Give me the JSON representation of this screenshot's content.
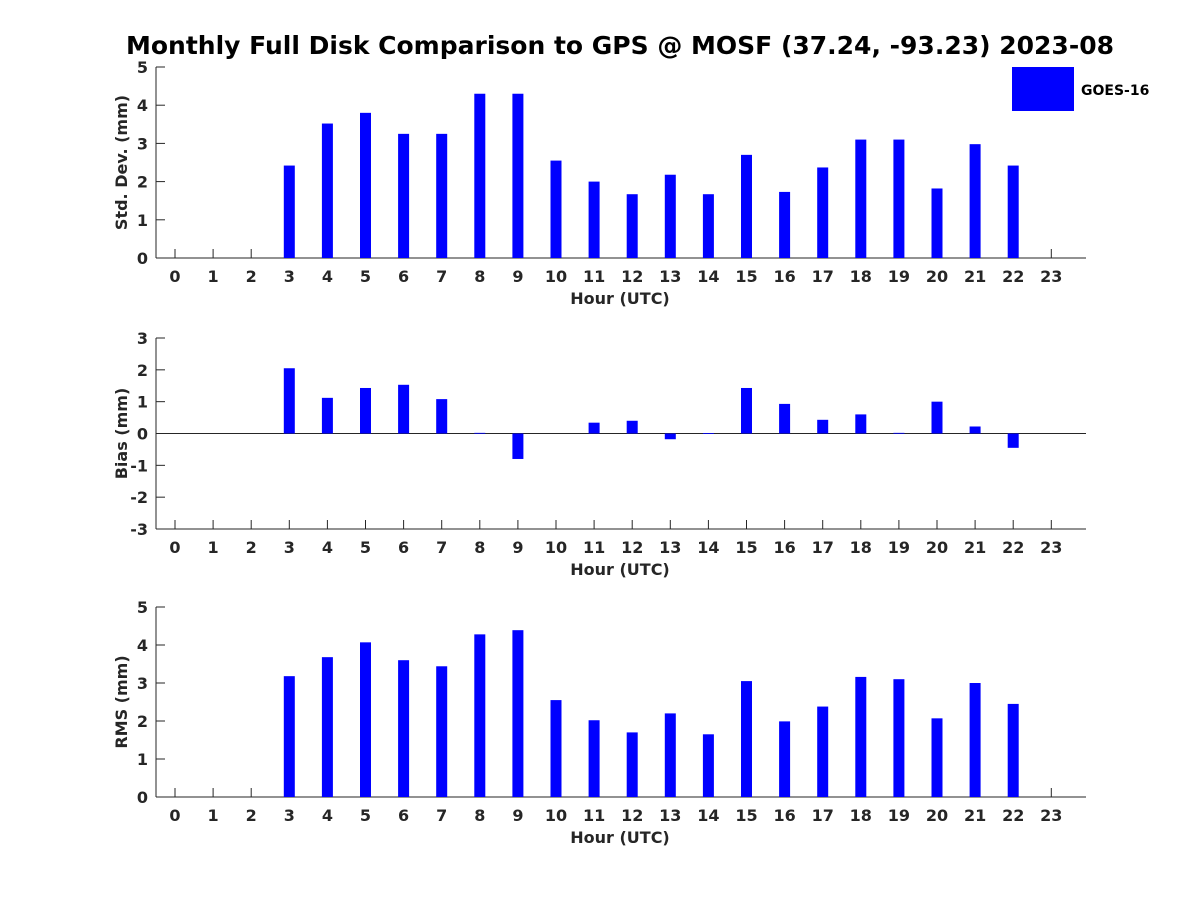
{
  "title": "Monthly Full Disk Comparison to GPS @ MOSF (37.24, -93.23) 2023-08",
  "legend": {
    "label": "GOES-16",
    "color": "#0000ff",
    "placement": "top-right"
  },
  "chart_data": [
    {
      "type": "bar",
      "xlabel": "Hour (UTC)",
      "ylabel": "Std. Dev. (mm)",
      "ylim": [
        0,
        5
      ],
      "yticks": [
        "0",
        "1",
        "2",
        "3",
        "4",
        "5"
      ],
      "categories": [
        "0",
        "1",
        "2",
        "3",
        "4",
        "5",
        "6",
        "7",
        "8",
        "9",
        "10",
        "11",
        "12",
        "13",
        "14",
        "15",
        "16",
        "17",
        "18",
        "19",
        "20",
        "21",
        "22",
        "23"
      ],
      "series": [
        {
          "name": "GOES-16",
          "color": "#0000ff",
          "values": [
            null,
            null,
            null,
            2.42,
            3.52,
            3.8,
            3.25,
            3.25,
            4.3,
            4.3,
            2.55,
            2.0,
            1.67,
            2.18,
            1.67,
            2.7,
            1.73,
            2.37,
            3.1,
            3.1,
            1.82,
            2.98,
            2.42,
            null
          ]
        }
      ]
    },
    {
      "type": "bar",
      "xlabel": "Hour (UTC)",
      "ylabel": "Bias (mm)",
      "ylim": [
        -3,
        3
      ],
      "yticks": [
        "-3",
        "-2",
        "-1",
        "0",
        "1",
        "2",
        "3"
      ],
      "categories": [
        "0",
        "1",
        "2",
        "3",
        "4",
        "5",
        "6",
        "7",
        "8",
        "9",
        "10",
        "11",
        "12",
        "13",
        "14",
        "15",
        "16",
        "17",
        "18",
        "19",
        "20",
        "21",
        "22",
        "23"
      ],
      "series": [
        {
          "name": "GOES-16",
          "color": "#0000ff",
          "values": [
            null,
            null,
            null,
            2.05,
            1.12,
            1.43,
            1.53,
            1.08,
            0.02,
            -0.8,
            null,
            0.34,
            0.4,
            -0.18,
            0.01,
            1.43,
            0.93,
            0.43,
            0.6,
            0.02,
            1.0,
            0.22,
            -0.45,
            null
          ]
        }
      ]
    },
    {
      "type": "bar",
      "xlabel": "Hour (UTC)",
      "ylabel": "RMS (mm)",
      "ylim": [
        0,
        5
      ],
      "yticks": [
        "0",
        "1",
        "2",
        "3",
        "4",
        "5"
      ],
      "categories": [
        "0",
        "1",
        "2",
        "3",
        "4",
        "5",
        "6",
        "7",
        "8",
        "9",
        "10",
        "11",
        "12",
        "13",
        "14",
        "15",
        "16",
        "17",
        "18",
        "19",
        "20",
        "21",
        "22",
        "23"
      ],
      "series": [
        {
          "name": "GOES-16",
          "color": "#0000ff",
          "values": [
            null,
            null,
            null,
            3.18,
            3.68,
            4.07,
            3.6,
            3.44,
            4.28,
            4.39,
            2.55,
            2.02,
            1.7,
            2.2,
            1.65,
            3.05,
            1.99,
            2.38,
            3.16,
            3.1,
            2.07,
            3.0,
            2.45,
            null
          ]
        }
      ]
    }
  ]
}
